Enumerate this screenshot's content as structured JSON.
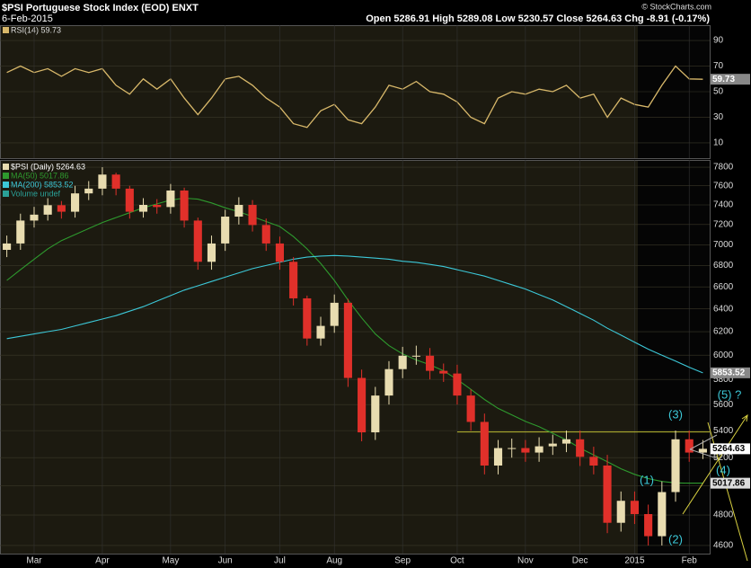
{
  "header": {
    "symbol_title": "$PSI Portuguese Stock Index (EOD) ENXT",
    "date": "6-Feb-2015",
    "quote": "Open 5286.91 High 5289.08 Low 5230.57 Close 5264.63 Chg -8.91 (-0.17%)",
    "credit": "© StockCharts.com"
  },
  "chart_data": [
    {
      "type": "line",
      "series": [
        {
          "name": "RSI(14) 59.73",
          "color": "#d8b86a",
          "values": [
            65,
            70,
            65,
            68,
            62,
            68,
            65,
            68,
            55,
            48,
            60,
            52,
            60,
            45,
            32,
            45,
            60,
            62,
            55,
            45,
            38,
            25,
            22,
            35,
            40,
            28,
            25,
            38,
            55,
            52,
            58,
            50,
            48,
            42,
            30,
            25,
            45,
            50,
            48,
            52,
            50,
            55,
            45,
            48,
            30,
            45,
            40,
            38,
            55,
            70,
            60,
            59.73
          ]
        }
      ],
      "ylim": [
        -2,
        102
      ],
      "yticks": [
        10,
        30,
        50,
        70,
        90
      ],
      "grid": true
    },
    {
      "type": "candlestick",
      "categories": [
        null,
        null,
        "Mar",
        null,
        null,
        null,
        null,
        "Apr",
        null,
        null,
        null,
        null,
        "May",
        null,
        null,
        null,
        "Jun",
        null,
        null,
        null,
        "Jul",
        null,
        null,
        null,
        "Aug",
        null,
        null,
        null,
        null,
        "Sep",
        null,
        null,
        null,
        "Oct",
        null,
        null,
        null,
        null,
        "Nov",
        null,
        null,
        null,
        "Dec",
        null,
        null,
        null,
        "2015",
        null,
        null,
        null,
        "Feb",
        null
      ],
      "name": "$PSI (Daily) 5264.63",
      "up_color": "#e8dcb0",
      "down_color": "#e0302a",
      "open": [
        6950,
        7012,
        7240,
        7300,
        7397,
        7330,
        7520,
        7570,
        7720,
        7570,
        7330,
        7400,
        7378,
        7550,
        7240,
        6835,
        7012,
        7280,
        7400,
        7195,
        7012,
        6835,
        6495,
        6141,
        6250,
        6455,
        5812,
        5387,
        5671,
        5884,
        5995,
        5995,
        5870,
        5848,
        5671,
        5466,
        5143,
        5270,
        5270,
        5237,
        5283,
        5303,
        5335,
        5206,
        5143,
        4748,
        4896,
        4806,
        4660,
        4956,
        5335,
        5237
      ],
      "high": [
        7090,
        7310,
        7380,
        7470,
        7440,
        7600,
        7650,
        7800,
        7740,
        7600,
        7470,
        7460,
        7620,
        7580,
        7270,
        7090,
        7350,
        7480,
        7450,
        7260,
        7080,
        6880,
        6520,
        6330,
        6530,
        6490,
        5880,
        5740,
        5950,
        6070,
        6080,
        6060,
        5930,
        5920,
        5720,
        5530,
        5330,
        5340,
        5330,
        5350,
        5370,
        5400,
        5400,
        5280,
        5220,
        4960,
        4960,
        4870,
        5030,
        5400,
        5400,
        5330
      ],
      "low": [
        6880,
        6950,
        7170,
        7240,
        7260,
        7270,
        7450,
        7500,
        7500,
        7260,
        7270,
        7310,
        7310,
        7170,
        6760,
        6760,
        6940,
        7200,
        7130,
        6940,
        6760,
        6430,
        6080,
        6080,
        6190,
        5740,
        5320,
        5330,
        5600,
        5810,
        5920,
        5800,
        5780,
        5600,
        5400,
        5080,
        5080,
        5200,
        5170,
        5170,
        5220,
        5240,
        5140,
        5080,
        4680,
        4690,
        4740,
        4600,
        4600,
        4890,
        5170,
        5190
      ],
      "close": [
        7012,
        7240,
        7300,
        7397,
        7330,
        7520,
        7570,
        7720,
        7570,
        7330,
        7400,
        7378,
        7550,
        7240,
        6835,
        7012,
        7280,
        7400,
        7195,
        7012,
        6835,
        6495,
        6141,
        6250,
        6455,
        5812,
        5387,
        5671,
        5884,
        5995,
        5995,
        5870,
        5848,
        5671,
        5466,
        5143,
        5270,
        5270,
        5237,
        5283,
        5303,
        5335,
        5206,
        5143,
        4748,
        4896,
        4806,
        4660,
        4956,
        5335,
        5237,
        5264.63
      ],
      "series": [
        {
          "name": "MA(50) 5017.86",
          "color": "#2e9a2e",
          "values": [
            6660,
            6760,
            6860,
            6960,
            7040,
            7100,
            7160,
            7220,
            7270,
            7320,
            7370,
            7410,
            7450,
            7470,
            7460,
            7420,
            7370,
            7330,
            7280,
            7230,
            7180,
            7080,
            6960,
            6820,
            6660,
            6480,
            6320,
            6180,
            6080,
            6010,
            5960,
            5920,
            5870,
            5800,
            5720,
            5640,
            5570,
            5520,
            5470,
            5430,
            5380,
            5330,
            5270,
            5220,
            5170,
            5120,
            5080,
            5050,
            5030,
            5020,
            5018,
            5017.86
          ]
        },
        {
          "name": "MA(200) 5853.52",
          "color": "#3cc8d8",
          "values": [
            6140,
            6160,
            6180,
            6200,
            6220,
            6250,
            6280,
            6310,
            6340,
            6380,
            6420,
            6470,
            6520,
            6570,
            6610,
            6650,
            6690,
            6730,
            6770,
            6800,
            6830,
            6860,
            6880,
            6890,
            6895,
            6890,
            6880,
            6870,
            6860,
            6840,
            6830,
            6810,
            6790,
            6760,
            6730,
            6700,
            6660,
            6620,
            6580,
            6530,
            6480,
            6420,
            6360,
            6300,
            6230,
            6170,
            6110,
            6050,
            6000,
            5950,
            5900,
            5853.52
          ]
        }
      ],
      "volume_label": "Volume undef",
      "ylim": [
        4548,
        7879
      ],
      "log_scale": true,
      "yticks": [
        4600,
        4800,
        5000,
        5200,
        5400,
        5600,
        5800,
        6000,
        6200,
        6400,
        6600,
        6800,
        7000,
        7200,
        7400,
        7600,
        7800
      ],
      "grid": true,
      "resistance": 5390,
      "annotations": [
        "(1)",
        "(2)",
        "(3)",
        "(4)",
        "(5) ?"
      ]
    }
  ]
}
